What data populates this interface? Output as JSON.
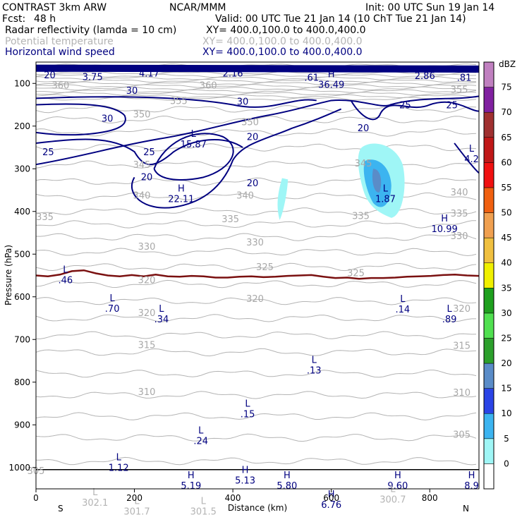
{
  "header": {
    "line1_left": "CONTRAST  3km ARW",
    "line1_center": "NCAR/MMM",
    "line1_right": "Init: 00 UTC Sun 19 Jan 14",
    "fcst_label": "Fcst:",
    "fcst_value": "48 h",
    "valid": "Valid: 00 UTC Tue 21 Jan 14 (10 ChT Tue 21 Jan 14)"
  },
  "fields": [
    {
      "name": "Radar reflectivity (lamda = 10 cm)",
      "xy": "XY= 400.0,100.0 to 400.0,400.0",
      "color": "#000000"
    },
    {
      "name": "Potential temperature",
      "xy": "XY= 400.0,100.0 to 400.0,400.0",
      "color": "#b4b4b4"
    },
    {
      "name": "Horizontal wind speed",
      "xy": "XY= 400.0,100.0 to 400.0,400.0",
      "color": "#000080"
    }
  ],
  "chart_data": {
    "type": "cross-section",
    "xlabel": "Distance (km)",
    "ylabel": "Pressure (hPa)",
    "xlim": [
      0,
      900
    ],
    "ylim": [
      1050,
      50
    ],
    "xticks": [
      0,
      200,
      400,
      600,
      800
    ],
    "yticks": [
      100,
      200,
      300,
      400,
      500,
      600,
      700,
      800,
      900,
      1000
    ],
    "x_end_labels": {
      "left": "S",
      "right": "N"
    },
    "colorbar": {
      "unit": "dBZ",
      "levels": [
        0,
        5,
        10,
        15,
        20,
        25,
        30,
        35,
        40,
        45,
        50,
        55,
        60,
        65,
        70,
        75
      ],
      "colors": [
        "#ffffff",
        "#9ff6f6",
        "#3cb4f0",
        "#2a44e6",
        "#5a8cc8",
        "#2ca02c",
        "#50e050",
        "#1ea01e",
        "#f0f000",
        "#f0c040",
        "#f0a050",
        "#f06010",
        "#f01010",
        "#c01818",
        "#a03030",
        "#8020a0",
        "#c080c0"
      ]
    },
    "theta_labels": [
      {
        "value": "360",
        "x": 50,
        "p": 112
      },
      {
        "value": "360",
        "x": 350,
        "p": 112
      },
      {
        "value": "355",
        "x": 290,
        "p": 148
      },
      {
        "value": "355",
        "x": 860,
        "p": 122
      },
      {
        "value": "350",
        "x": 215,
        "p": 180
      },
      {
        "value": "350",
        "x": 435,
        "p": 198
      },
      {
        "value": "345",
        "x": 215,
        "p": 298
      },
      {
        "value": "345",
        "x": 665,
        "p": 295
      },
      {
        "value": "340",
        "x": 215,
        "p": 370
      },
      {
        "value": "340",
        "x": 425,
        "p": 370
      },
      {
        "value": "340",
        "x": 860,
        "p": 362
      },
      {
        "value": "335",
        "x": 18,
        "p": 420
      },
      {
        "value": "335",
        "x": 395,
        "p": 425
      },
      {
        "value": "335",
        "x": 660,
        "p": 418
      },
      {
        "value": "335",
        "x": 860,
        "p": 412
      },
      {
        "value": "330",
        "x": 225,
        "p": 490
      },
      {
        "value": "330",
        "x": 445,
        "p": 480
      },
      {
        "value": "330",
        "x": 860,
        "p": 465
      },
      {
        "value": "325",
        "x": 465,
        "p": 538
      },
      {
        "value": "325",
        "x": 650,
        "p": 552
      },
      {
        "value": "320",
        "x": 225,
        "p": 568
      },
      {
        "value": "320",
        "x": 445,
        "p": 612
      },
      {
        "value": "320",
        "x": 225,
        "p": 645
      },
      {
        "value": "320",
        "x": 865,
        "p": 635
      },
      {
        "value": "315",
        "x": 225,
        "p": 720
      },
      {
        "value": "315",
        "x": 865,
        "p": 722
      },
      {
        "value": "310",
        "x": 225,
        "p": 830
      },
      {
        "value": "310",
        "x": 865,
        "p": 832
      },
      {
        "value": "305",
        "x": 865,
        "p": 930
      },
      {
        "value": "305",
        "x": 0,
        "p": 1015
      }
    ],
    "wind_labels": [
      {
        "value": "20",
        "x": 28,
        "p": 88
      },
      {
        "value": "3.75",
        "x": 115,
        "p": 92
      },
      {
        "value": "4.17",
        "x": 230,
        "p": 84
      },
      {
        "value": "2.16",
        "x": 400,
        "p": 84
      },
      {
        "value": ".61",
        "x": 560,
        "p": 94
      },
      {
        "value": "2.86",
        "x": 790,
        "p": 90
      },
      {
        "value": ".81",
        "x": 870,
        "p": 94
      },
      {
        "value": "30",
        "x": 195,
        "p": 124
      },
      {
        "value": "30",
        "x": 420,
        "p": 150
      },
      {
        "value": "30",
        "x": 145,
        "p": 190
      },
      {
        "value": "25",
        "x": 750,
        "p": 158
      },
      {
        "value": "25",
        "x": 845,
        "p": 158
      },
      {
        "value": "25",
        "x": 25,
        "p": 268
      },
      {
        "value": "25",
        "x": 230,
        "p": 268
      },
      {
        "value": "20",
        "x": 440,
        "p": 233
      },
      {
        "value": "20",
        "x": 665,
        "p": 212
      },
      {
        "value": "20",
        "x": 225,
        "p": 327
      },
      {
        "value": "20",
        "x": 440,
        "p": 341
      }
    ],
    "extrema": [
      {
        "type": "H",
        "value": "36.49",
        "x": 600,
        "p": 110
      },
      {
        "type": "L",
        "value": "15.87",
        "x": 320,
        "p": 250
      },
      {
        "type": "L",
        "value": "4.2",
        "x": 885,
        "p": 285
      },
      {
        "type": "H",
        "value": "22.11",
        "x": 295,
        "p": 378
      },
      {
        "type": "L",
        "value": "1.87",
        "x": 710,
        "p": 378
      },
      {
        "type": "H",
        "value": "10.99",
        "x": 830,
        "p": 448
      },
      {
        "type": "L",
        "value": ".46",
        "x": 60,
        "p": 568
      },
      {
        "type": "L",
        "value": ".70",
        "x": 155,
        "p": 635
      },
      {
        "type": "L",
        "value": ".34",
        "x": 255,
        "p": 660
      },
      {
        "type": "L",
        "value": ".14",
        "x": 745,
        "p": 637
      },
      {
        "type": "L",
        "value": ".89",
        "x": 840,
        "p": 660
      },
      {
        "type": "L",
        "value": ".13",
        "x": 565,
        "p": 780
      },
      {
        "type": "L",
        "value": ".15",
        "x": 430,
        "p": 882
      },
      {
        "type": "L",
        "value": ".24",
        "x": 335,
        "p": 945
      },
      {
        "type": "L",
        "value": "1.12",
        "x": 168,
        "p": 1008
      },
      {
        "type": "H",
        "value": "5.19",
        "x": 315,
        "p": 1050
      },
      {
        "type": "H",
        "value": "5.13",
        "x": 425,
        "p": 1038
      },
      {
        "type": "H",
        "value": "5.80",
        "x": 510,
        "p": 1050
      },
      {
        "type": "H",
        "value": "9.60",
        "x": 735,
        "p": 1050
      },
      {
        "type": "H",
        "value": "8.9",
        "x": 885,
        "p": 1050
      },
      {
        "type": "H",
        "value": "6.76",
        "x": 600,
        "p": 1095
      }
    ],
    "surface_theta_labels": [
      {
        "type": "L",
        "value": "302.1",
        "x": 120,
        "p": 1090
      },
      {
        "type": "L",
        "value": "301.7",
        "x": 205,
        "p": 1110
      },
      {
        "type": "L",
        "value": "301.5",
        "x": 340,
        "p": 1110
      },
      {
        "type": "L",
        "value": "300.7",
        "x": 725,
        "p": 1082
      }
    ]
  }
}
